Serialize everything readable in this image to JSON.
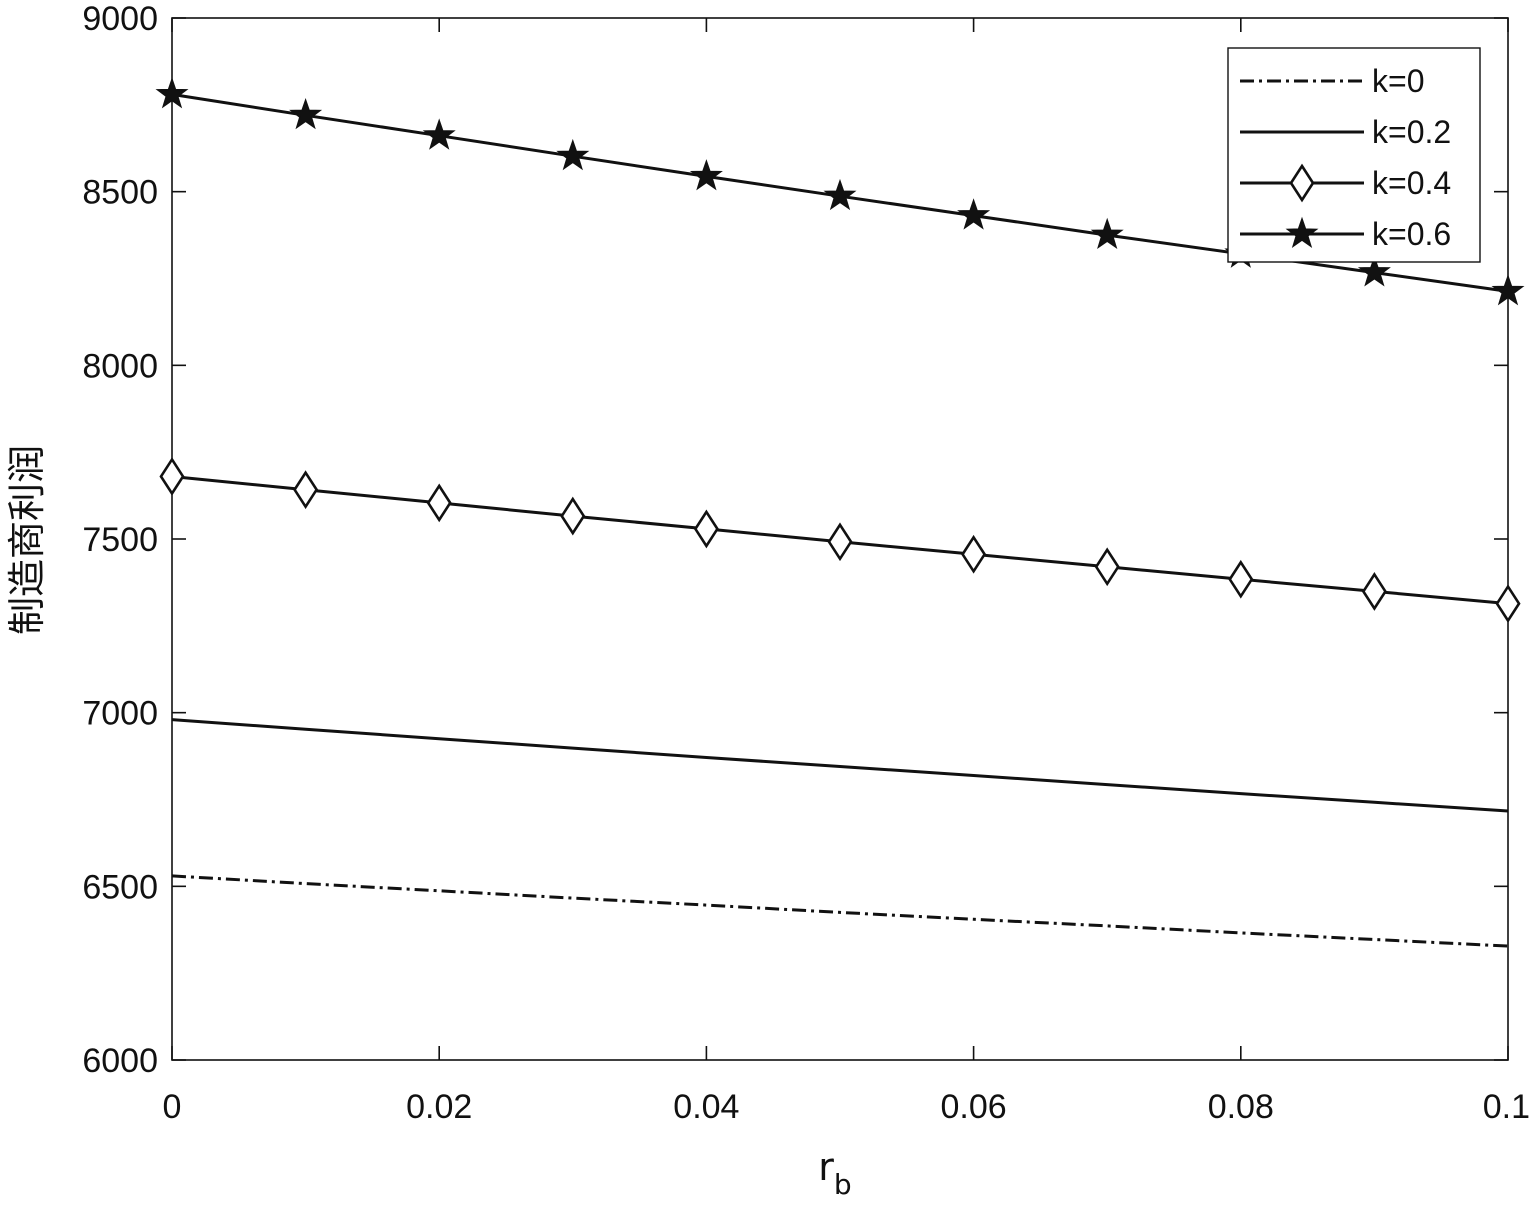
{
  "chart_data": {
    "type": "line",
    "title": "",
    "xlabel": "r",
    "xlabel_subscript": "b",
    "ylabel": "制造商利润",
    "xlim": [
      0,
      0.1
    ],
    "ylim": [
      6000,
      9000
    ],
    "x_ticks": [
      0,
      0.02,
      0.04,
      0.06,
      0.08,
      0.1
    ],
    "x_tick_labels": [
      "0",
      "0.02",
      "0.04",
      "0.06",
      "0.08",
      "0.1"
    ],
    "y_ticks": [
      6000,
      6500,
      7000,
      7500,
      8000,
      8500,
      9000
    ],
    "y_tick_labels": [
      "6000",
      "6500",
      "7000",
      "7500",
      "8000",
      "8500",
      "9000"
    ],
    "grid": false,
    "legend_position": "top-right",
    "x": [
      0,
      0.01,
      0.02,
      0.03,
      0.04,
      0.05,
      0.06,
      0.07,
      0.08,
      0.09,
      0.1
    ],
    "series": [
      {
        "name": "k=0",
        "style": "dash-dot",
        "marker": "none",
        "values": [
          6530,
          6508,
          6487,
          6466,
          6446,
          6425,
          6405,
          6386,
          6366,
          6347,
          6328
        ]
      },
      {
        "name": "k=0.2",
        "style": "solid",
        "marker": "none",
        "values": [
          6980,
          6952,
          6925,
          6898,
          6871,
          6845,
          6819,
          6793,
          6767,
          6742,
          6717
        ]
      },
      {
        "name": "k=0.4",
        "style": "solid",
        "marker": "diamond",
        "values": [
          7680,
          7642,
          7604,
          7566,
          7529,
          7492,
          7456,
          7420,
          7384,
          7349,
          7314
        ]
      },
      {
        "name": "k=0.6",
        "style": "solid",
        "marker": "star",
        "values": [
          8780,
          8720,
          8661,
          8602,
          8544,
          8487,
          8431,
          8375,
          8321,
          8267,
          8213
        ]
      }
    ]
  },
  "colors": {
    "line": "#111111",
    "axis": "#111111",
    "background": "#ffffff"
  }
}
